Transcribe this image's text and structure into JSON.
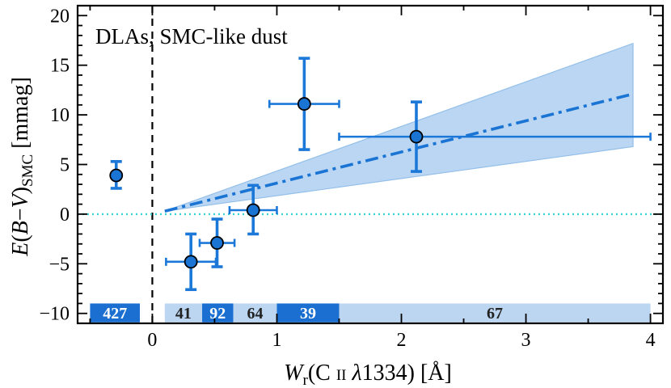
{
  "chart_data": {
    "type": "scatter",
    "title": "",
    "annotation": "DLAs, SMC-like dust",
    "xlabel": "W_r(C II λ1334) [Å]",
    "ylabel": "E(B−V)_SMC [mmag]",
    "xlim": [
      -0.6,
      4.1
    ],
    "ylim": [
      -11,
      21
    ],
    "xticks": [
      0,
      1,
      2,
      3,
      4
    ],
    "yticks": [
      -10,
      -5,
      0,
      5,
      10,
      15,
      20
    ],
    "xtick_labels": [
      "0",
      "1",
      "2",
      "3",
      "4"
    ],
    "ytick_labels": [
      "−10",
      "−5",
      "0",
      "5",
      "10",
      "15",
      "20"
    ],
    "vertical_dashed_line_x": 0,
    "horizontal_dotted_line_y": 0,
    "points": [
      {
        "x": -0.29,
        "y": 3.9,
        "xerr": [
          0,
          0
        ],
        "yerr": [
          1.3,
          1.4
        ]
      },
      {
        "x": 0.31,
        "y": -4.8,
        "xerr": [
          0.2,
          0.2
        ],
        "yerr": [
          2.8,
          2.8
        ]
      },
      {
        "x": 0.52,
        "y": -2.9,
        "xerr": [
          0.14,
          0.14
        ],
        "yerr": [
          2.4,
          2.4
        ]
      },
      {
        "x": 0.81,
        "y": 0.4,
        "xerr": [
          0.19,
          0.19
        ],
        "yerr": [
          2.4,
          2.5
        ]
      },
      {
        "x": 1.22,
        "y": 11.1,
        "xerr": [
          0.28,
          0.28
        ],
        "yerr": [
          4.6,
          4.6
        ]
      },
      {
        "x": 2.12,
        "y": 7.8,
        "xerr": [
          0.62,
          1.88
        ],
        "yerr": [
          3.5,
          3.5
        ]
      }
    ],
    "fit": {
      "x_start": 0.1,
      "x_end": 3.86,
      "y_start": 0.3,
      "y_end": 12.1
    },
    "fit_band": {
      "upper_end": 17.2,
      "lower_end": 6.8
    },
    "bins": [
      {
        "x0": -0.5,
        "x1": -0.1,
        "label": "427",
        "style": "dark"
      },
      {
        "x0": 0.1,
        "x1": 0.4,
        "label": "41",
        "style": "light"
      },
      {
        "x0": 0.4,
        "x1": 0.65,
        "label": "92",
        "style": "dark"
      },
      {
        "x0": 0.65,
        "x1": 1.0,
        "label": "64",
        "style": "light"
      },
      {
        "x0": 1.0,
        "x1": 1.5,
        "label": "39",
        "style": "dark"
      },
      {
        "x0": 1.5,
        "x1": 4.0,
        "label": "67",
        "style": "light"
      }
    ],
    "bin_y_range": [
      -10.9,
      -9.0
    ]
  },
  "colors": {
    "marker": "#1a74d4",
    "errorbar": "#1b78d8",
    "fit_line": "#1a74d4",
    "band_fill": "#bad6f3",
    "band_edge": "#93bfe9",
    "bin_dark": "#1a6fd1",
    "bin_light": "#bcd6f1",
    "zero_line": "#35d3d8"
  }
}
